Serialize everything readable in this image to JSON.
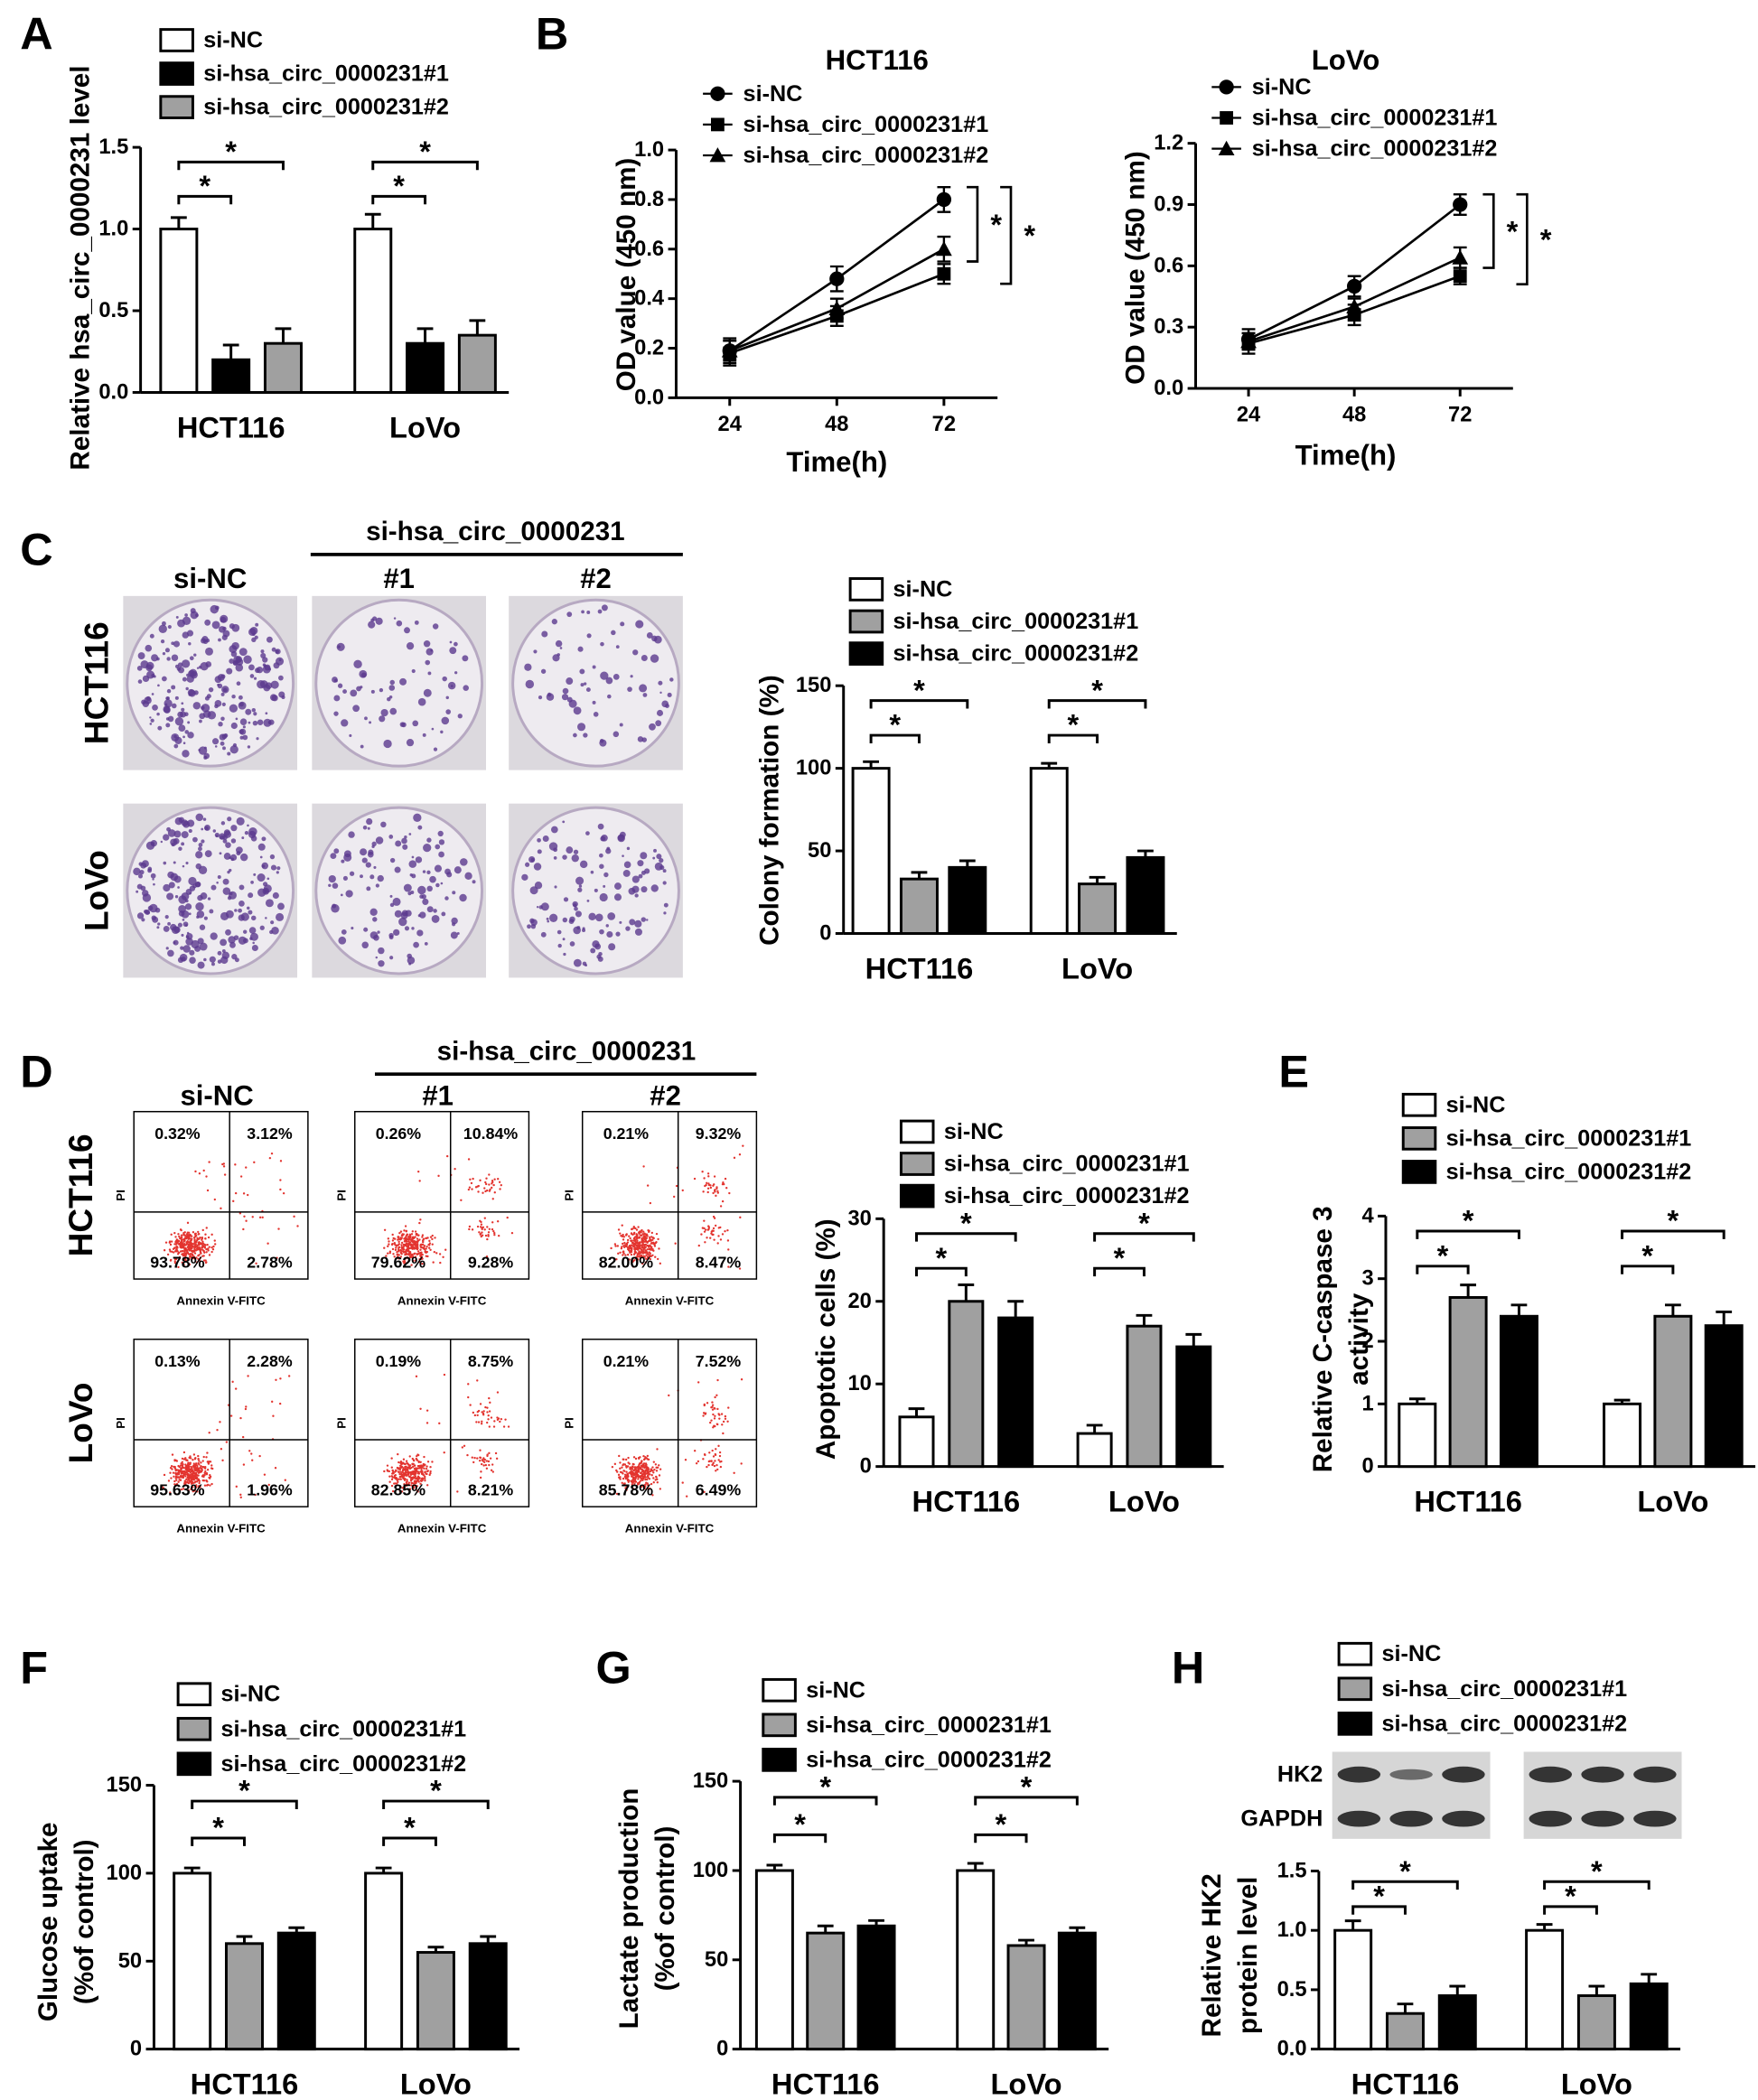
{
  "colony_panel": {
    "panel": "C",
    "group_label": "si-hsa_circ_0000231",
    "columns": [
      "si-NC",
      "#1",
      "#2"
    ],
    "rows": [
      "HCT116",
      "LoVo"
    ]
  },
  "flow_panel": {
    "panel": "D",
    "group_label": "si-hsa_circ_0000231",
    "columns": [
      "si-NC",
      "#1",
      "#2"
    ],
    "rows": [
      "HCT116",
      "LoVo"
    ],
    "x_axis_label": "Annexin V-FITC",
    "y_axis_label": "PI",
    "quadrants": [
      [
        [
          "0.32%",
          "3.12%",
          "93.78%",
          "2.78%"
        ],
        [
          "0.26%",
          "10.84%",
          "79.62%",
          "9.28%"
        ],
        [
          "0.21%",
          "9.32%",
          "82.00%",
          "8.47%"
        ]
      ],
      [
        [
          "0.13%",
          "2.28%",
          "95.63%",
          "1.96%"
        ],
        [
          "0.19%",
          "8.75%",
          "82.85%",
          "8.21%"
        ],
        [
          "0.21%",
          "7.52%",
          "85.78%",
          "6.49%"
        ]
      ]
    ]
  },
  "blot_panel": {
    "rows": [
      "HK2",
      "GAPDH"
    ]
  },
  "chart_data": [
    {
      "type": "bar",
      "panel": "A",
      "ylabel": [
        "Relative hsa_circ_0000231 level"
      ],
      "categories": [
        "HCT116",
        "LoVo"
      ],
      "ylim": [
        0,
        1.5
      ],
      "yticks": [
        {
          "value": 0,
          "label": "0.0"
        },
        0.5,
        {
          "value": 1,
          "label": "1.0"
        },
        1.5
      ],
      "series": [
        {
          "name": "si-NC",
          "color": "#ffffff",
          "values": [
            1.0,
            1.0
          ],
          "errors": [
            0.07,
            0.09
          ]
        },
        {
          "name": "si-hsa_circ_0000231#1",
          "color": "#000000",
          "values": [
            0.2,
            0.3
          ],
          "errors": [
            0.09,
            0.09
          ]
        },
        {
          "name": "si-hsa_circ_0000231#2",
          "color": "#a0a0a0",
          "values": [
            0.3,
            0.35
          ],
          "errors": [
            0.09,
            0.09
          ]
        }
      ],
      "annotations": [
        "*",
        "*",
        "*",
        "*"
      ]
    },
    {
      "type": "line",
      "panel": "B",
      "title": "HCT116",
      "xlabel": "Time(h)",
      "ylabel": [
        "OD value (450 nm)"
      ],
      "x": [
        24,
        48,
        72
      ],
      "xlim": [
        12,
        84
      ],
      "xticks": [
        24,
        48,
        72
      ],
      "ylim": [
        0,
        1.0
      ],
      "yticks": [
        {
          "value": 0,
          "label": "0.0"
        },
        0.2,
        0.4,
        0.6,
        0.8,
        {
          "value": 1,
          "label": "1.0"
        }
      ],
      "series": [
        {
          "name": "si-NC",
          "color": "#000000",
          "marker": "circle",
          "values": [
            0.19,
            0.48,
            0.8
          ],
          "errors": [
            0.05,
            0.05,
            0.05
          ]
        },
        {
          "name": "si-hsa_circ_0000231#1",
          "color": "#000000",
          "marker": "square",
          "values": [
            0.18,
            0.33,
            0.5
          ],
          "errors": [
            0.05,
            0.04,
            0.04
          ]
        },
        {
          "name": "si-hsa_circ_0000231#2",
          "color": "#000000",
          "marker": "triangle",
          "values": [
            0.19,
            0.36,
            0.6
          ],
          "errors": [
            0.04,
            0.04,
            0.05
          ]
        }
      ],
      "annotations": [
        "*",
        "*"
      ]
    },
    {
      "type": "line",
      "title": "LoVo",
      "xlabel": "Time(h)",
      "ylabel": [
        "OD value (450 nm)"
      ],
      "x": [
        24,
        48,
        72
      ],
      "xlim": [
        12,
        84
      ],
      "xticks": [
        24,
        48,
        72
      ],
      "ylim": [
        0,
        1.2
      ],
      "yticks": [
        {
          "value": 0,
          "label": "0.0"
        },
        0.3,
        0.6,
        0.9,
        1.2
      ],
      "series": [
        {
          "name": "si-NC",
          "color": "#000000",
          "marker": "circle",
          "values": [
            0.24,
            0.5,
            0.9
          ],
          "errors": [
            0.05,
            0.05,
            0.05
          ]
        },
        {
          "name": "si-hsa_circ_0000231#1",
          "color": "#000000",
          "marker": "square",
          "values": [
            0.22,
            0.36,
            0.55
          ],
          "errors": [
            0.05,
            0.05,
            0.04
          ]
        },
        {
          "name": "si-hsa_circ_0000231#2",
          "color": "#000000",
          "marker": "triangle",
          "values": [
            0.23,
            0.4,
            0.64
          ],
          "errors": [
            0.04,
            0.04,
            0.05
          ]
        }
      ],
      "annotations": [
        "*",
        "*"
      ]
    },
    {
      "type": "bar",
      "ylabel": [
        "Colony formation (%)"
      ],
      "categories": [
        "HCT116",
        "LoVo"
      ],
      "ylim": [
        0,
        150
      ],
      "yticks": [
        0,
        50,
        100,
        150
      ],
      "series": [
        {
          "name": "si-NC",
          "color": "#ffffff",
          "values": [
            100,
            100
          ],
          "errors": [
            4,
            3
          ]
        },
        {
          "name": "si-hsa_circ_0000231#1",
          "color": "#a0a0a0",
          "values": [
            33,
            30
          ],
          "errors": [
            4,
            4
          ]
        },
        {
          "name": "si-hsa_circ_0000231#2",
          "color": "#000000",
          "values": [
            40,
            46
          ],
          "errors": [
            4,
            4
          ]
        }
      ],
      "annotations": [
        "*",
        "*",
        "*",
        "*"
      ]
    },
    {
      "type": "bar",
      "ylabel": [
        "Apoptotic cells (%)"
      ],
      "categories": [
        "HCT116",
        "LoVo"
      ],
      "ylim": [
        0,
        30
      ],
      "yticks": [
        0,
        10,
        20,
        30
      ],
      "series": [
        {
          "name": "si-NC",
          "color": "#ffffff",
          "values": [
            6,
            4
          ],
          "errors": [
            1,
            1
          ]
        },
        {
          "name": "si-hsa_circ_0000231#1",
          "color": "#a0a0a0",
          "values": [
            20,
            17
          ],
          "errors": [
            2,
            1.3
          ]
        },
        {
          "name": "si-hsa_circ_0000231#2",
          "color": "#000000",
          "values": [
            18,
            14.5
          ],
          "errors": [
            2,
            1.5
          ]
        }
      ],
      "annotations": [
        "*",
        "*",
        "*",
        "*"
      ]
    },
    {
      "type": "bar",
      "panel": "E",
      "ylabel": [
        "Relative C-caspase 3",
        "activity"
      ],
      "categories": [
        "HCT116",
        "LoVo"
      ],
      "ylim": [
        0,
        4
      ],
      "yticks": [
        0,
        1,
        2,
        3,
        4
      ],
      "series": [
        {
          "name": "si-NC",
          "color": "#ffffff",
          "values": [
            1.0,
            1.0
          ],
          "errors": [
            0.08,
            0.06
          ]
        },
        {
          "name": "si-hsa_circ_0000231#1",
          "color": "#a0a0a0",
          "values": [
            2.7,
            2.4
          ],
          "errors": [
            0.2,
            0.18
          ]
        },
        {
          "name": "si-hsa_circ_0000231#2",
          "color": "#000000",
          "values": [
            2.4,
            2.25
          ],
          "errors": [
            0.18,
            0.22
          ]
        }
      ],
      "annotations": [
        "*",
        "*",
        "*",
        "*"
      ]
    },
    {
      "type": "bar",
      "panel": "F",
      "ylabel": [
        "Glucose uptake",
        "(%of control)"
      ],
      "categories": [
        "HCT116",
        "LoVo"
      ],
      "ylim": [
        0,
        150
      ],
      "yticks": [
        0,
        50,
        100,
        150
      ],
      "series": [
        {
          "name": "si-NC",
          "color": "#ffffff",
          "values": [
            100,
            100
          ],
          "errors": [
            3,
            3
          ]
        },
        {
          "name": "si-hsa_circ_0000231#1",
          "color": "#a0a0a0",
          "values": [
            60,
            55
          ],
          "errors": [
            4,
            3
          ]
        },
        {
          "name": "si-hsa_circ_0000231#2",
          "color": "#000000",
          "values": [
            66,
            60
          ],
          "errors": [
            3,
            4
          ]
        }
      ],
      "annotations": [
        "*",
        "*",
        "*",
        "*"
      ]
    },
    {
      "type": "bar",
      "panel": "G",
      "ylabel": [
        "Lactate production",
        "(%of control)"
      ],
      "categories": [
        "HCT116",
        "LoVo"
      ],
      "ylim": [
        0,
        150
      ],
      "yticks": [
        0,
        50,
        100,
        150
      ],
      "series": [
        {
          "name": "si-NC",
          "color": "#ffffff",
          "values": [
            100,
            100
          ],
          "errors": [
            3,
            4
          ]
        },
        {
          "name": "si-hsa_circ_0000231#1",
          "color": "#a0a0a0",
          "values": [
            65,
            58
          ],
          "errors": [
            4,
            3
          ]
        },
        {
          "name": "si-hsa_circ_0000231#2",
          "color": "#000000",
          "values": [
            69,
            65
          ],
          "errors": [
            3,
            3
          ]
        }
      ],
      "annotations": [
        "*",
        "*",
        "*",
        "*"
      ]
    },
    {
      "type": "bar",
      "panel": "H",
      "ylabel": [
        "Relative HK2",
        "protein level"
      ],
      "categories": [
        "HCT116",
        "LoVo"
      ],
      "ylim": [
        0,
        1.5
      ],
      "yticks": [
        {
          "value": 0,
          "label": "0.0"
        },
        0.5,
        {
          "value": 1,
          "label": "1.0"
        },
        1.5
      ],
      "series": [
        {
          "name": "si-NC",
          "color": "#ffffff",
          "values": [
            1.0,
            1.0
          ],
          "errors": [
            0.08,
            0.05
          ]
        },
        {
          "name": "si-hsa_circ_0000231#1",
          "color": "#a0a0a0",
          "values": [
            0.3,
            0.45
          ],
          "errors": [
            0.08,
            0.08
          ]
        },
        {
          "name": "si-hsa_circ_0000231#2",
          "color": "#000000",
          "values": [
            0.45,
            0.55
          ],
          "errors": [
            0.08,
            0.08
          ]
        }
      ],
      "annotations": [
        "*",
        "*",
        "*",
        "*"
      ]
    }
  ]
}
